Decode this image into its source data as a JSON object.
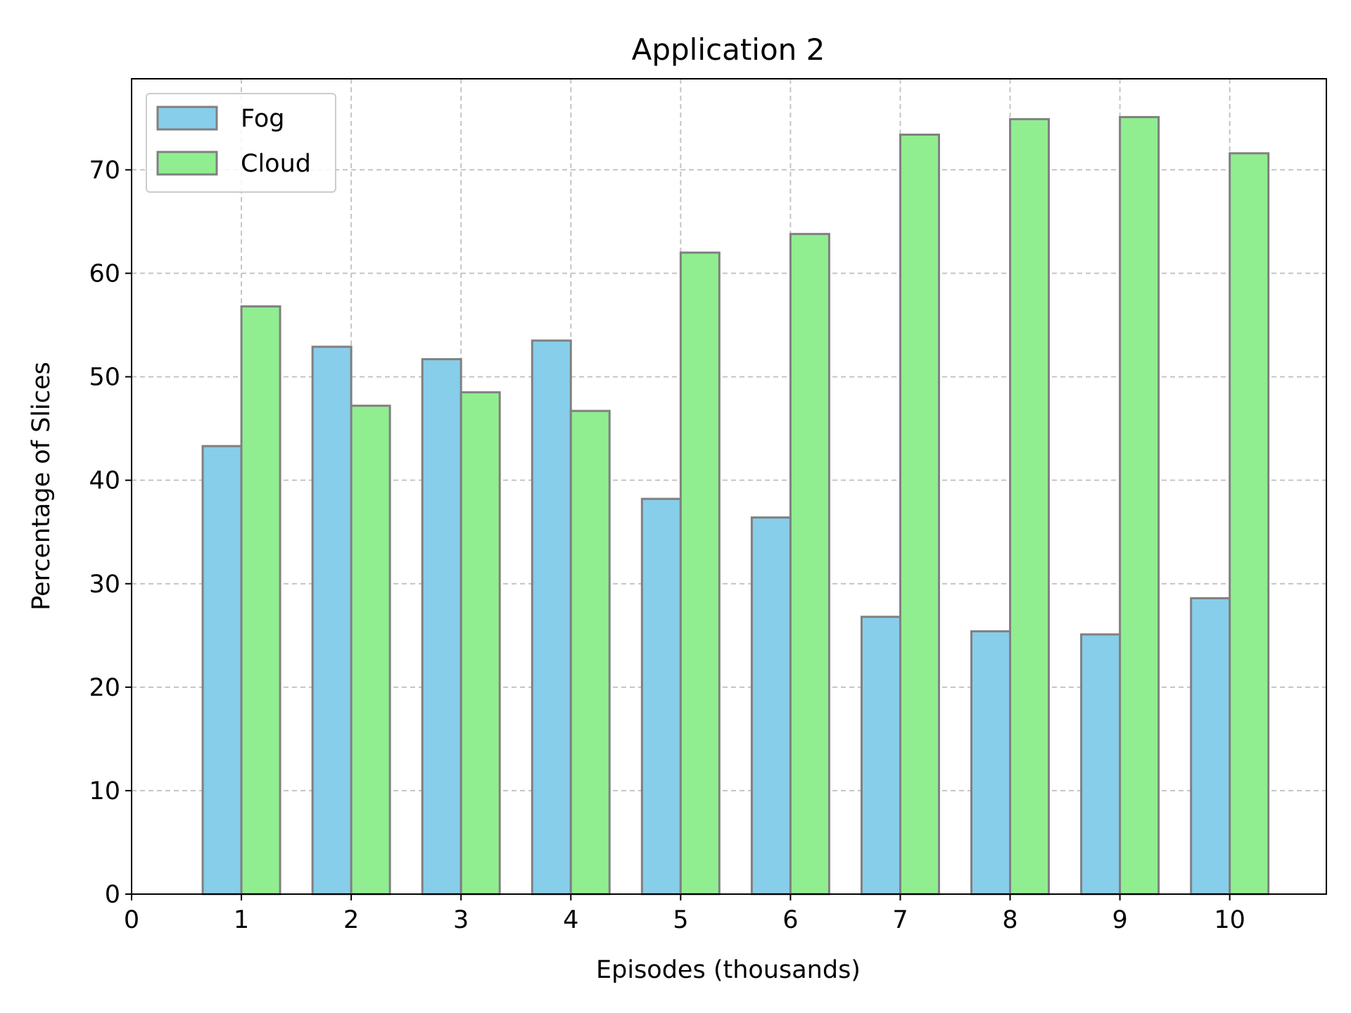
{
  "chart_data": {
    "type": "bar",
    "title": "Application 2",
    "xlabel": "Episodes (thousands)",
    "ylabel": "Percentage of Slices",
    "x": [
      0,
      1,
      2,
      3,
      4,
      5,
      6,
      7,
      8,
      9,
      10
    ],
    "xlim": [
      0,
      10.88
    ],
    "ylim": [
      0,
      78.8
    ],
    "yticks": [
      0,
      10,
      20,
      30,
      40,
      50,
      60,
      70
    ],
    "grid": true,
    "legend_position": "top-left",
    "series": [
      {
        "name": "Fog",
        "color": "#87ceeb",
        "values": [
          0,
          43.3,
          52.9,
          51.7,
          53.5,
          38.2,
          36.4,
          26.8,
          25.4,
          25.1,
          28.6
        ]
      },
      {
        "name": "Cloud",
        "color": "#90ee90",
        "values": [
          0,
          56.8,
          47.2,
          48.5,
          46.7,
          62.0,
          63.8,
          73.4,
          74.9,
          75.1,
          71.6
        ]
      }
    ],
    "bar_edge_color": "#808080"
  }
}
